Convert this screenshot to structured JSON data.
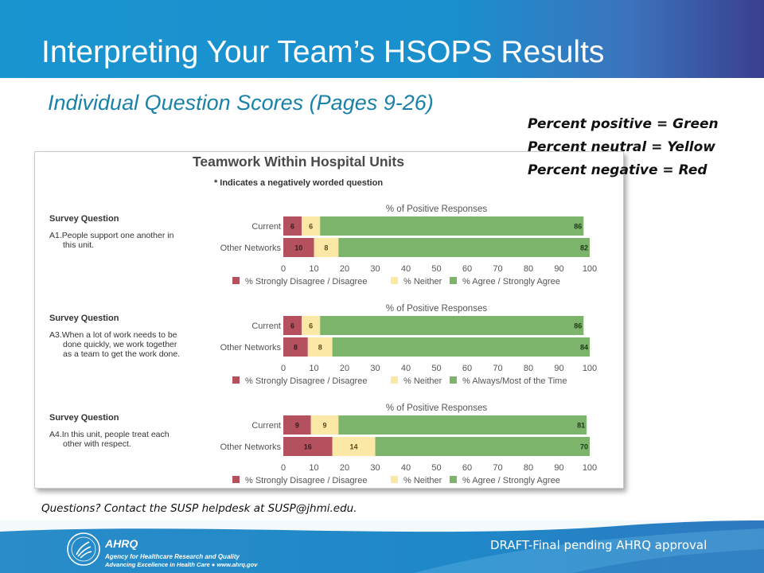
{
  "slide": {
    "title": "Interpreting Your Team’s HSOPS Results",
    "subtitle": "Individual Question Scores (Pages 9-26)",
    "color_key": [
      "Percent positive = Green",
      "Percent neutral = Yellow",
      "Percent negative = Red"
    ],
    "contact": "Questions? Contact the SUSP helpdesk at SUSP@jhmi.edu.",
    "footer": {
      "logo_mark": "AHRQ",
      "agency_line1": "Agency for Healthcare Research and Quality",
      "agency_line2": "Advancing Excellence in Health Care ● www.ahrq.gov",
      "draft_notice": "DRAFT-Final pending AHRQ approval"
    },
    "colors": {
      "title_bar": "#1a95d0",
      "subtitle": "#1a82a8",
      "negative": "#b5515e",
      "neutral": "#fbe8a6",
      "positive": "#7cb46b"
    }
  },
  "chart_data": {
    "type": "bar",
    "stacked": true,
    "orientation": "horizontal",
    "title": "Teamwork Within Hospital Units",
    "note": "* Indicates a negatively worded question",
    "xlim": [
      0,
      100
    ],
    "xticks": [
      "0",
      "10",
      "20",
      "30",
      "40",
      "50",
      "60",
      "70",
      "80",
      "90",
      "100"
    ],
    "axis_label": "% of Positive Responses",
    "categories": [
      "Current",
      "Other Networks"
    ],
    "panels": [
      {
        "heading": "Survey Question",
        "question": "A1.People support one another in this unit.",
        "question_lines": [
          "A1.People support one another in",
          "this unit."
        ],
        "series": [
          {
            "name": "% Strongly Disagree / Disagree",
            "values": [
              6,
              10
            ]
          },
          {
            "name": "% Neither",
            "values": [
              6,
              8
            ]
          },
          {
            "name": "% Agree / Strongly Agree",
            "values": [
              86,
              82
            ]
          }
        ]
      },
      {
        "heading": "Survey Question",
        "question": "A3.When a lot of work needs to be done quickly, we work together as a team to get the work done.",
        "question_lines": [
          "A3.When a lot of work needs to be",
          "done quickly, we work together",
          "as a team to get the work done."
        ],
        "series": [
          {
            "name": "% Strongly Disagree / Disagree",
            "values": [
              6,
              8
            ]
          },
          {
            "name": "% Neither",
            "values": [
              6,
              8
            ]
          },
          {
            "name": "% Always/Most of the Time",
            "values": [
              86,
              84
            ]
          }
        ]
      },
      {
        "heading": "Survey Question",
        "question": "A4.In this unit, people treat each other with respect.",
        "question_lines": [
          "A4.In this unit, people treat each",
          "other with respect."
        ],
        "series": [
          {
            "name": "% Strongly Disagree / Disagree",
            "values": [
              9,
              16
            ]
          },
          {
            "name": "% Neither",
            "values": [
              9,
              14
            ]
          },
          {
            "name": "% Agree / Strongly Agree",
            "values": [
              81,
              70
            ]
          }
        ]
      }
    ]
  }
}
